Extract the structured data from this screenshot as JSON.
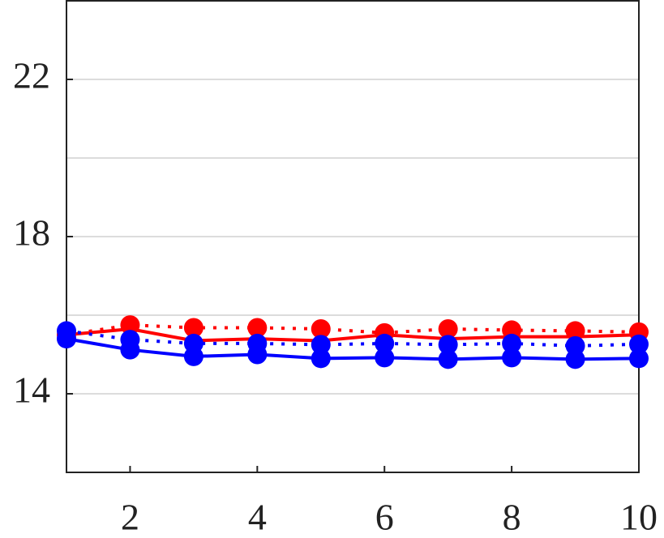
{
  "chart_data": {
    "type": "line",
    "x": [
      1,
      2,
      3,
      4,
      5,
      6,
      7,
      8,
      9,
      10
    ],
    "series": [
      {
        "color": "#ff0000",
        "dash": "dotted",
        "marker": true,
        "values": [
          15.5,
          15.75,
          15.68,
          15.68,
          15.65,
          15.55,
          15.65,
          15.62,
          15.6,
          15.57
        ]
      },
      {
        "color": "#ff0000",
        "dash": "solid",
        "marker": false,
        "values": [
          15.5,
          15.65,
          15.35,
          15.4,
          15.35,
          15.5,
          15.4,
          15.45,
          15.45,
          15.5
        ]
      },
      {
        "color": "#0000ff",
        "dash": "dotted",
        "marker": true,
        "values": [
          15.6,
          15.38,
          15.28,
          15.28,
          15.25,
          15.28,
          15.25,
          15.28,
          15.22,
          15.26
        ]
      },
      {
        "color": "#0000ff",
        "dash": "solid",
        "marker": true,
        "values": [
          15.4,
          15.12,
          14.95,
          15.0,
          14.9,
          14.92,
          14.88,
          14.92,
          14.88,
          14.9
        ]
      }
    ],
    "xlim": [
      1,
      10
    ],
    "xticks": [
      2,
      4,
      6,
      8,
      10
    ],
    "ylim": [
      12,
      24
    ],
    "yticks": [
      14,
      18,
      22
    ],
    "ygridlines": [
      14,
      16,
      18,
      20,
      22
    ],
    "grid": true
  }
}
